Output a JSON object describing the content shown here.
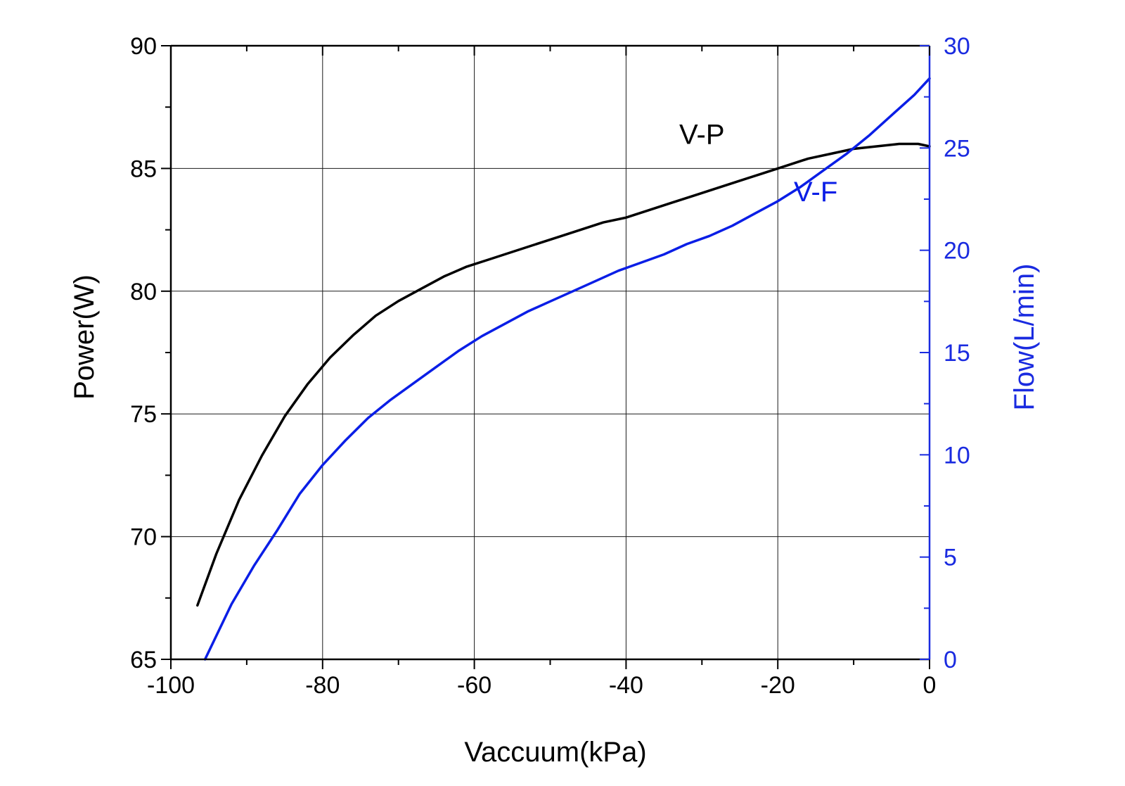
{
  "chart_data": {
    "type": "line",
    "title": "",
    "xlabel": "Vaccuum(kPa)",
    "ylabel_left": "Power(W)",
    "ylabel_right": "Flow(L/min)",
    "xlim": [
      -100,
      0
    ],
    "ylim_left": [
      65,
      90
    ],
    "ylim_right": [
      0,
      30
    ],
    "x_ticks": [
      -100,
      -80,
      -60,
      -40,
      -20,
      0
    ],
    "y_left_ticks": [
      65,
      70,
      75,
      80,
      85,
      90
    ],
    "y_right_ticks": [
      0,
      5,
      10,
      15,
      20,
      25,
      30
    ],
    "grid": true,
    "legend": "none",
    "colors": {
      "V-P": "#000000",
      "V-F": "#0a1ee6",
      "right_axis": "#1a2be0",
      "grid": "#1a1a1a"
    },
    "series": [
      {
        "name": "V-P",
        "axis": "left",
        "x": [
          -96.5,
          -94,
          -91,
          -88,
          -85,
          -82,
          -79,
          -76,
          -73,
          -70,
          -67,
          -64,
          -61,
          -58,
          -55,
          -52,
          -49,
          -46,
          -43,
          -40,
          -37,
          -34,
          -31,
          -28,
          -25,
          -22,
          -19,
          -16,
          -13,
          -10,
          -7,
          -4,
          -1.5,
          0
        ],
        "y": [
          67.2,
          69.3,
          71.5,
          73.3,
          74.9,
          76.2,
          77.3,
          78.2,
          79.0,
          79.6,
          80.1,
          80.6,
          81.0,
          81.3,
          81.6,
          81.9,
          82.2,
          82.5,
          82.8,
          83.0,
          83.3,
          83.6,
          83.9,
          84.2,
          84.5,
          84.8,
          85.1,
          85.4,
          85.6,
          85.8,
          85.9,
          86.0,
          86.0,
          85.9
        ]
      },
      {
        "name": "V-F",
        "axis": "right",
        "x": [
          -95.5,
          -92,
          -89,
          -86,
          -83,
          -80,
          -77,
          -74,
          -71,
          -68,
          -65,
          -62,
          -59,
          -56,
          -53,
          -50,
          -47,
          -44,
          -41,
          -38,
          -35,
          -32,
          -29,
          -26,
          -23,
          -20,
          -17,
          -14,
          -11,
          -8,
          -5,
          -2,
          0
        ],
        "y": [
          0,
          2.7,
          4.6,
          6.3,
          8.1,
          9.5,
          10.7,
          11.8,
          12.7,
          13.5,
          14.3,
          15.1,
          15.8,
          16.4,
          17.0,
          17.5,
          18.0,
          18.5,
          19.0,
          19.4,
          19.8,
          20.3,
          20.7,
          21.2,
          21.8,
          22.4,
          23.1,
          23.9,
          24.7,
          25.6,
          26.6,
          27.6,
          28.4
        ]
      }
    ],
    "annotations": [
      {
        "text": "V-P",
        "x": -30,
        "y": 86.0,
        "axis": "left"
      },
      {
        "text": "V-F",
        "x": -15,
        "y": 22.4,
        "axis": "right"
      }
    ]
  }
}
